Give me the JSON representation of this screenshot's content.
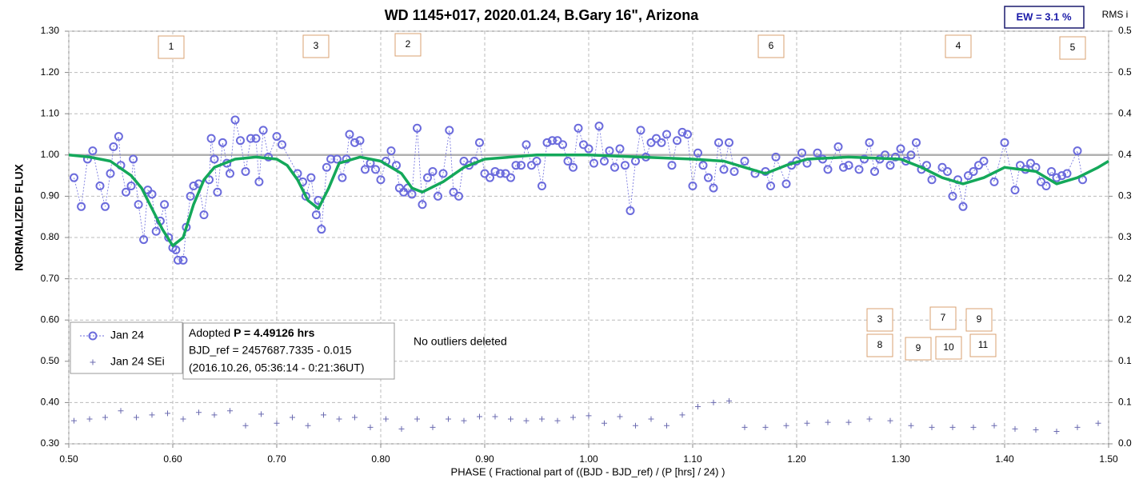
{
  "chart_data": {
    "type": "scatter",
    "title": "WD 1145+017, 2020.01.24, B.Gary 16\", Arizona",
    "x_label": "PHASE ( Fractional part of ((BJD - BJD_ref) / (P [hrs] / 24) )",
    "y_label": "NORMALIZED FLUX",
    "y2_label": "RMS i",
    "ew_label": "EW = 3.1 %",
    "note": "No outliers deleted",
    "info": {
      "prefix": "Adopted",
      "period": "P = 4.49126 hrs",
      "bjd_ref": "BJD_ref = 2457687.7335 - 0.015",
      "date": "(2016.10.26, 05:36:14 - 0:21:36UT)"
    },
    "annotations": [
      "1",
      "3",
      "2",
      "6",
      "4",
      "5",
      "3",
      "7",
      "9",
      "8",
      "9",
      "10",
      "11"
    ],
    "xlim": [
      0.5,
      1.5
    ],
    "ylim": [
      0.3,
      1.3
    ],
    "y2lim": [
      0,
      0.5
    ],
    "xticks": [
      {
        "value": 0.5,
        "label": "0.50"
      },
      {
        "value": 0.6,
        "label": "0.60"
      },
      {
        "value": 0.7,
        "label": "0.70"
      },
      {
        "value": 0.8,
        "label": "0.80"
      },
      {
        "value": 0.9,
        "label": "0.90"
      },
      {
        "value": 1.0,
        "label": "1.00"
      },
      {
        "value": 1.1,
        "label": "1.10"
      },
      {
        "value": 1.2,
        "label": "1.20"
      },
      {
        "value": 1.3,
        "label": "1.30"
      },
      {
        "value": 1.4,
        "label": "1.40"
      },
      {
        "value": 1.5,
        "label": "1.50"
      }
    ],
    "yticks": [
      {
        "value": 0.3,
        "label": "0.30"
      },
      {
        "value": 0.4,
        "label": "0.40"
      },
      {
        "value": 0.5,
        "label": "0.50"
      },
      {
        "value": 0.6,
        "label": "0.60"
      },
      {
        "value": 0.7,
        "label": "0.70"
      },
      {
        "value": 0.8,
        "label": "0.80"
      },
      {
        "value": 0.9,
        "label": "0.90"
      },
      {
        "value": 1.0,
        "label": "1.00"
      },
      {
        "value": 1.1,
        "label": "1.10"
      },
      {
        "value": 1.2,
        "label": "1.20"
      },
      {
        "value": 1.3,
        "label": "1.30"
      }
    ],
    "y2ticks": [
      {
        "value": 0,
        "label": "0.0"
      },
      {
        "value": 0.05,
        "label": "0.1"
      },
      0.1,
      {
        "value": 0.15,
        "label": "0.2"
      },
      0.2,
      {
        "value": 0.25,
        "label": "0.3"
      },
      0.3,
      {
        "value": 0.35,
        "label": "0.4"
      },
      0.4,
      {
        "value": 0.45,
        "label": "0.5"
      },
      0.5
    ],
    "grid": true,
    "reference_line": 1.0,
    "reference_color": "#b0b0b0",
    "series": [
      {
        "name": "Jan 24",
        "color": "#6b6bdc",
        "x": [
          0.505,
          0.512,
          0.518,
          0.523,
          0.53,
          0.535,
          0.54,
          0.543,
          0.548,
          0.55,
          0.555,
          0.56,
          0.562,
          0.567,
          0.572,
          0.576,
          0.58,
          0.584,
          0.588,
          0.592,
          0.596,
          0.6,
          0.603,
          0.605,
          0.61,
          0.613,
          0.617,
          0.62,
          0.625,
          0.63,
          0.635,
          0.637,
          0.64,
          0.643,
          0.648,
          0.652,
          0.655,
          0.66,
          0.665,
          0.67,
          0.675,
          0.68,
          0.683,
          0.687,
          0.692,
          0.7,
          0.705,
          0.72,
          0.725,
          0.728,
          0.733,
          0.738,
          0.74,
          0.743,
          0.748,
          0.752,
          0.758,
          0.763,
          0.767,
          0.77,
          0.775,
          0.78,
          0.785,
          0.79,
          0.795,
          0.8,
          0.805,
          0.81,
          0.815,
          0.818,
          0.822,
          0.826,
          0.83,
          0.835,
          0.84,
          0.845,
          0.85,
          0.855,
          0.86,
          0.866,
          0.87,
          0.875,
          0.88,
          0.885,
          0.89,
          0.895,
          0.9,
          0.905,
          0.91,
          0.915,
          0.92,
          0.925,
          0.93,
          0.935,
          0.94,
          0.945,
          0.95,
          0.955,
          0.96,
          0.965,
          0.97,
          0.975,
          0.98,
          0.985,
          0.99,
          0.995,
          1.0,
          1.005,
          1.01,
          1.015,
          1.02,
          1.025,
          1.03,
          1.035,
          1.04,
          1.045,
          1.05,
          1.055,
          1.06,
          1.065,
          1.07,
          1.075,
          1.08,
          1.085,
          1.09,
          1.095,
          1.1,
          1.105,
          1.11,
          1.115,
          1.12,
          1.125,
          1.13,
          1.135,
          1.14,
          1.15,
          1.16,
          1.17,
          1.175,
          1.18,
          1.19,
          1.195,
          1.2,
          1.205,
          1.21,
          1.22,
          1.225,
          1.23,
          1.24,
          1.245,
          1.25,
          1.26,
          1.265,
          1.27,
          1.275,
          1.28,
          1.285,
          1.29,
          1.295,
          1.3,
          1.305,
          1.31,
          1.315,
          1.32,
          1.325,
          1.33,
          1.34,
          1.345,
          1.35,
          1.355,
          1.36,
          1.365,
          1.37,
          1.375,
          1.38,
          1.39,
          1.4,
          1.41,
          1.415,
          1.42,
          1.425,
          1.43,
          1.435,
          1.44,
          1.445,
          1.45,
          1.455,
          1.46,
          1.47,
          1.475
        ],
        "values": [
          0.945,
          0.875,
          0.99,
          1.01,
          0.925,
          0.875,
          0.955,
          1.02,
          1.045,
          0.975,
          0.91,
          0.925,
          0.99,
          0.88,
          0.795,
          0.915,
          0.905,
          0.815,
          0.84,
          0.88,
          0.8,
          0.775,
          0.77,
          0.745,
          0.745,
          0.825,
          0.9,
          0.925,
          0.93,
          0.855,
          0.94,
          1.04,
          0.99,
          0.91,
          1.03,
          0.98,
          0.955,
          1.085,
          1.035,
          0.96,
          1.04,
          1.04,
          0.935,
          1.06,
          0.995,
          1.045,
          1.025,
          0.955,
          0.935,
          0.9,
          0.945,
          0.855,
          0.89,
          0.82,
          0.97,
          0.99,
          0.99,
          0.945,
          0.99,
          1.05,
          1.03,
          1.035,
          0.965,
          0.98,
          0.965,
          0.94,
          0.985,
          1.01,
          0.975,
          0.92,
          0.91,
          0.92,
          0.905,
          1.065,
          0.88,
          0.945,
          0.96,
          0.9,
          0.955,
          1.06,
          0.91,
          0.9,
          0.985,
          0.975,
          0.985,
          1.03,
          0.955,
          0.945,
          0.96,
          0.955,
          0.955,
          0.945,
          0.975,
          0.975,
          1.025,
          0.975,
          0.985,
          0.925,
          1.03,
          1.035,
          1.035,
          1.025,
          0.985,
          0.97,
          1.065,
          1.025,
          1.015,
          0.98,
          1.07,
          0.985,
          1.01,
          0.97,
          1.015,
          0.975,
          0.865,
          0.985,
          1.06,
          0.995,
          1.03,
          1.04,
          1.03,
          1.05,
          0.975,
          1.035,
          1.055,
          1.05,
          0.925,
          1.005,
          0.975,
          0.945,
          0.92,
          1.03,
          0.965,
          1.03,
          0.96,
          0.985,
          0.955,
          0.96,
          0.925,
          0.995,
          0.93,
          0.975,
          0.985,
          1.005,
          0.98,
          1.005,
          0.99,
          0.965,
          1.02,
          0.97,
          0.975,
          0.965,
          0.99,
          1.03,
          0.96,
          0.99,
          1.0,
          0.975,
          0.995,
          1.015,
          0.985,
          1.0,
          1.03,
          0.965,
          0.975,
          0.94,
          0.97,
          0.96,
          0.9,
          0.94,
          0.875,
          0.95,
          0.96,
          0.975,
          0.985,
          0.935,
          1.03,
          0.915,
          0.975,
          0.965,
          0.98,
          0.97,
          0.935,
          0.925,
          0.96,
          0.945,
          0.95,
          0.955,
          1.01,
          0.94
        ]
      },
      {
        "name": "Jan 24 SEi",
        "color": "#6b6bb0",
        "axis": "y2",
        "x": [
          0.505,
          0.52,
          0.535,
          0.55,
          0.565,
          0.58,
          0.595,
          0.61,
          0.625,
          0.64,
          0.655,
          0.67,
          0.685,
          0.7,
          0.715,
          0.73,
          0.745,
          0.76,
          0.775,
          0.79,
          0.805,
          0.82,
          0.835,
          0.85,
          0.865,
          0.88,
          0.895,
          0.91,
          0.925,
          0.94,
          0.955,
          0.97,
          0.985,
          1.0,
          1.015,
          1.03,
          1.045,
          1.06,
          1.075,
          1.09,
          1.105,
          1.12,
          1.135,
          1.15,
          1.17,
          1.19,
          1.21,
          1.23,
          1.25,
          1.27,
          1.29,
          1.31,
          1.33,
          1.35,
          1.37,
          1.39,
          1.41,
          1.43,
          1.45,
          1.47,
          1.49
        ],
        "values": [
          0.028,
          0.03,
          0.032,
          0.04,
          0.032,
          0.035,
          0.037,
          0.03,
          0.038,
          0.035,
          0.04,
          0.022,
          0.036,
          0.025,
          0.032,
          0.022,
          0.035,
          0.03,
          0.032,
          0.02,
          0.03,
          0.018,
          0.03,
          0.02,
          0.03,
          0.028,
          0.033,
          0.033,
          0.03,
          0.028,
          0.03,
          0.028,
          0.032,
          0.034,
          0.025,
          0.033,
          0.022,
          0.03,
          0.022,
          0.035,
          0.045,
          0.05,
          0.052,
          0.02,
          0.02,
          0.022,
          0.025,
          0.026,
          0.026,
          0.03,
          0.028,
          0.022,
          0.02,
          0.02,
          0.02,
          0.022,
          0.018,
          0.017,
          0.015,
          0.02,
          0.025
        ]
      }
    ],
    "fit": {
      "color": "#14a85a",
      "x": [
        0.5,
        0.52,
        0.54,
        0.56,
        0.57,
        0.58,
        0.59,
        0.6,
        0.61,
        0.62,
        0.63,
        0.64,
        0.66,
        0.68,
        0.7,
        0.71,
        0.72,
        0.73,
        0.74,
        0.75,
        0.76,
        0.78,
        0.8,
        0.82,
        0.83,
        0.84,
        0.86,
        0.88,
        0.9,
        0.95,
        1.0,
        1.05,
        1.1,
        1.13,
        1.15,
        1.17,
        1.19,
        1.21,
        1.25,
        1.3,
        1.32,
        1.34,
        1.36,
        1.38,
        1.4,
        1.43,
        1.45,
        1.47,
        1.49,
        1.5
      ],
      "values": [
        1.0,
        0.995,
        0.985,
        0.95,
        0.92,
        0.87,
        0.82,
        0.78,
        0.8,
        0.88,
        0.94,
        0.97,
        0.99,
        0.995,
        0.99,
        0.975,
        0.94,
        0.89,
        0.87,
        0.92,
        0.98,
        0.995,
        0.985,
        0.955,
        0.92,
        0.91,
        0.935,
        0.97,
        0.99,
        1.0,
        1.0,
        0.995,
        0.99,
        0.985,
        0.97,
        0.955,
        0.975,
        0.99,
        0.995,
        0.99,
        0.97,
        0.945,
        0.93,
        0.945,
        0.97,
        0.96,
        0.93,
        0.945,
        0.97,
        0.985
      ]
    }
  }
}
